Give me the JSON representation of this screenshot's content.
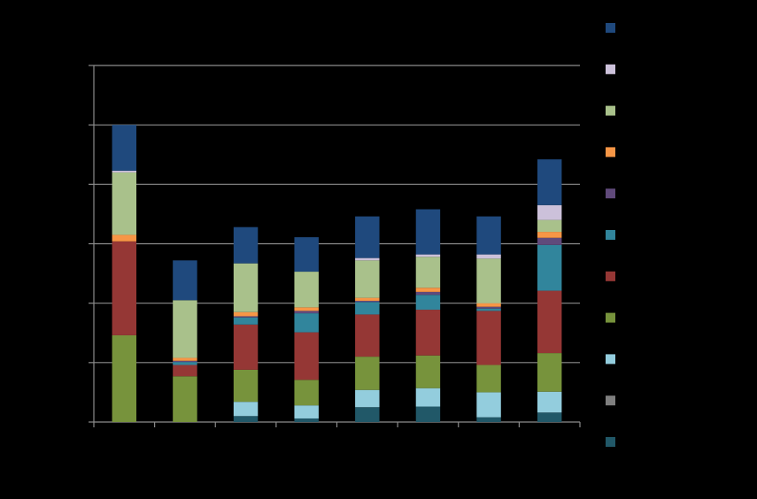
{
  "chart_data": {
    "type": "bar",
    "stacked": true,
    "grid": true,
    "legend_position": "right",
    "ylim": [
      0,
      6
    ],
    "categories": [
      "",
      "",
      "",
      "",
      "",
      "",
      "",
      ""
    ],
    "series": [
      {
        "color": "#215868",
        "values": [
          0.0,
          0.0,
          0.1,
          0.06,
          0.25,
          0.26,
          0.08,
          0.16
        ]
      },
      {
        "color": "#7f7f7f",
        "values": [
          0.0,
          0.0,
          0.0,
          0.0,
          0.0,
          0.0,
          0.0,
          0.0
        ]
      },
      {
        "color": "#93cddd",
        "values": [
          0.0,
          0.0,
          0.24,
          0.22,
          0.29,
          0.31,
          0.42,
          0.35
        ]
      },
      {
        "color": "#77933c",
        "values": [
          1.46,
          0.77,
          0.54,
          0.43,
          0.56,
          0.55,
          0.46,
          0.65
        ]
      },
      {
        "color": "#953735",
        "values": [
          1.58,
          0.19,
          0.76,
          0.8,
          0.71,
          0.77,
          0.91,
          1.05
        ]
      },
      {
        "color": "#31859c",
        "values": [
          0.0,
          0.05,
          0.12,
          0.32,
          0.21,
          0.25,
          0.04,
          0.77
        ]
      },
      {
        "color": "#604a7b",
        "values": [
          0.0,
          0.02,
          0.02,
          0.04,
          0.02,
          0.05,
          0.03,
          0.12
        ]
      },
      {
        "color": "#f79646",
        "values": [
          0.11,
          0.05,
          0.07,
          0.06,
          0.05,
          0.07,
          0.06,
          0.1
        ]
      },
      {
        "color": "#a9c18b",
        "values": [
          1.05,
          0.97,
          0.82,
          0.6,
          0.63,
          0.52,
          0.75,
          0.2
        ]
      },
      {
        "color": "#ccc1da",
        "values": [
          0.03,
          0.0,
          0.0,
          0.0,
          0.04,
          0.04,
          0.07,
          0.25
        ]
      },
      {
        "color": "#1f497d",
        "values": [
          0.77,
          0.67,
          0.61,
          0.58,
          0.7,
          0.76,
          0.64,
          0.77
        ]
      }
    ]
  }
}
